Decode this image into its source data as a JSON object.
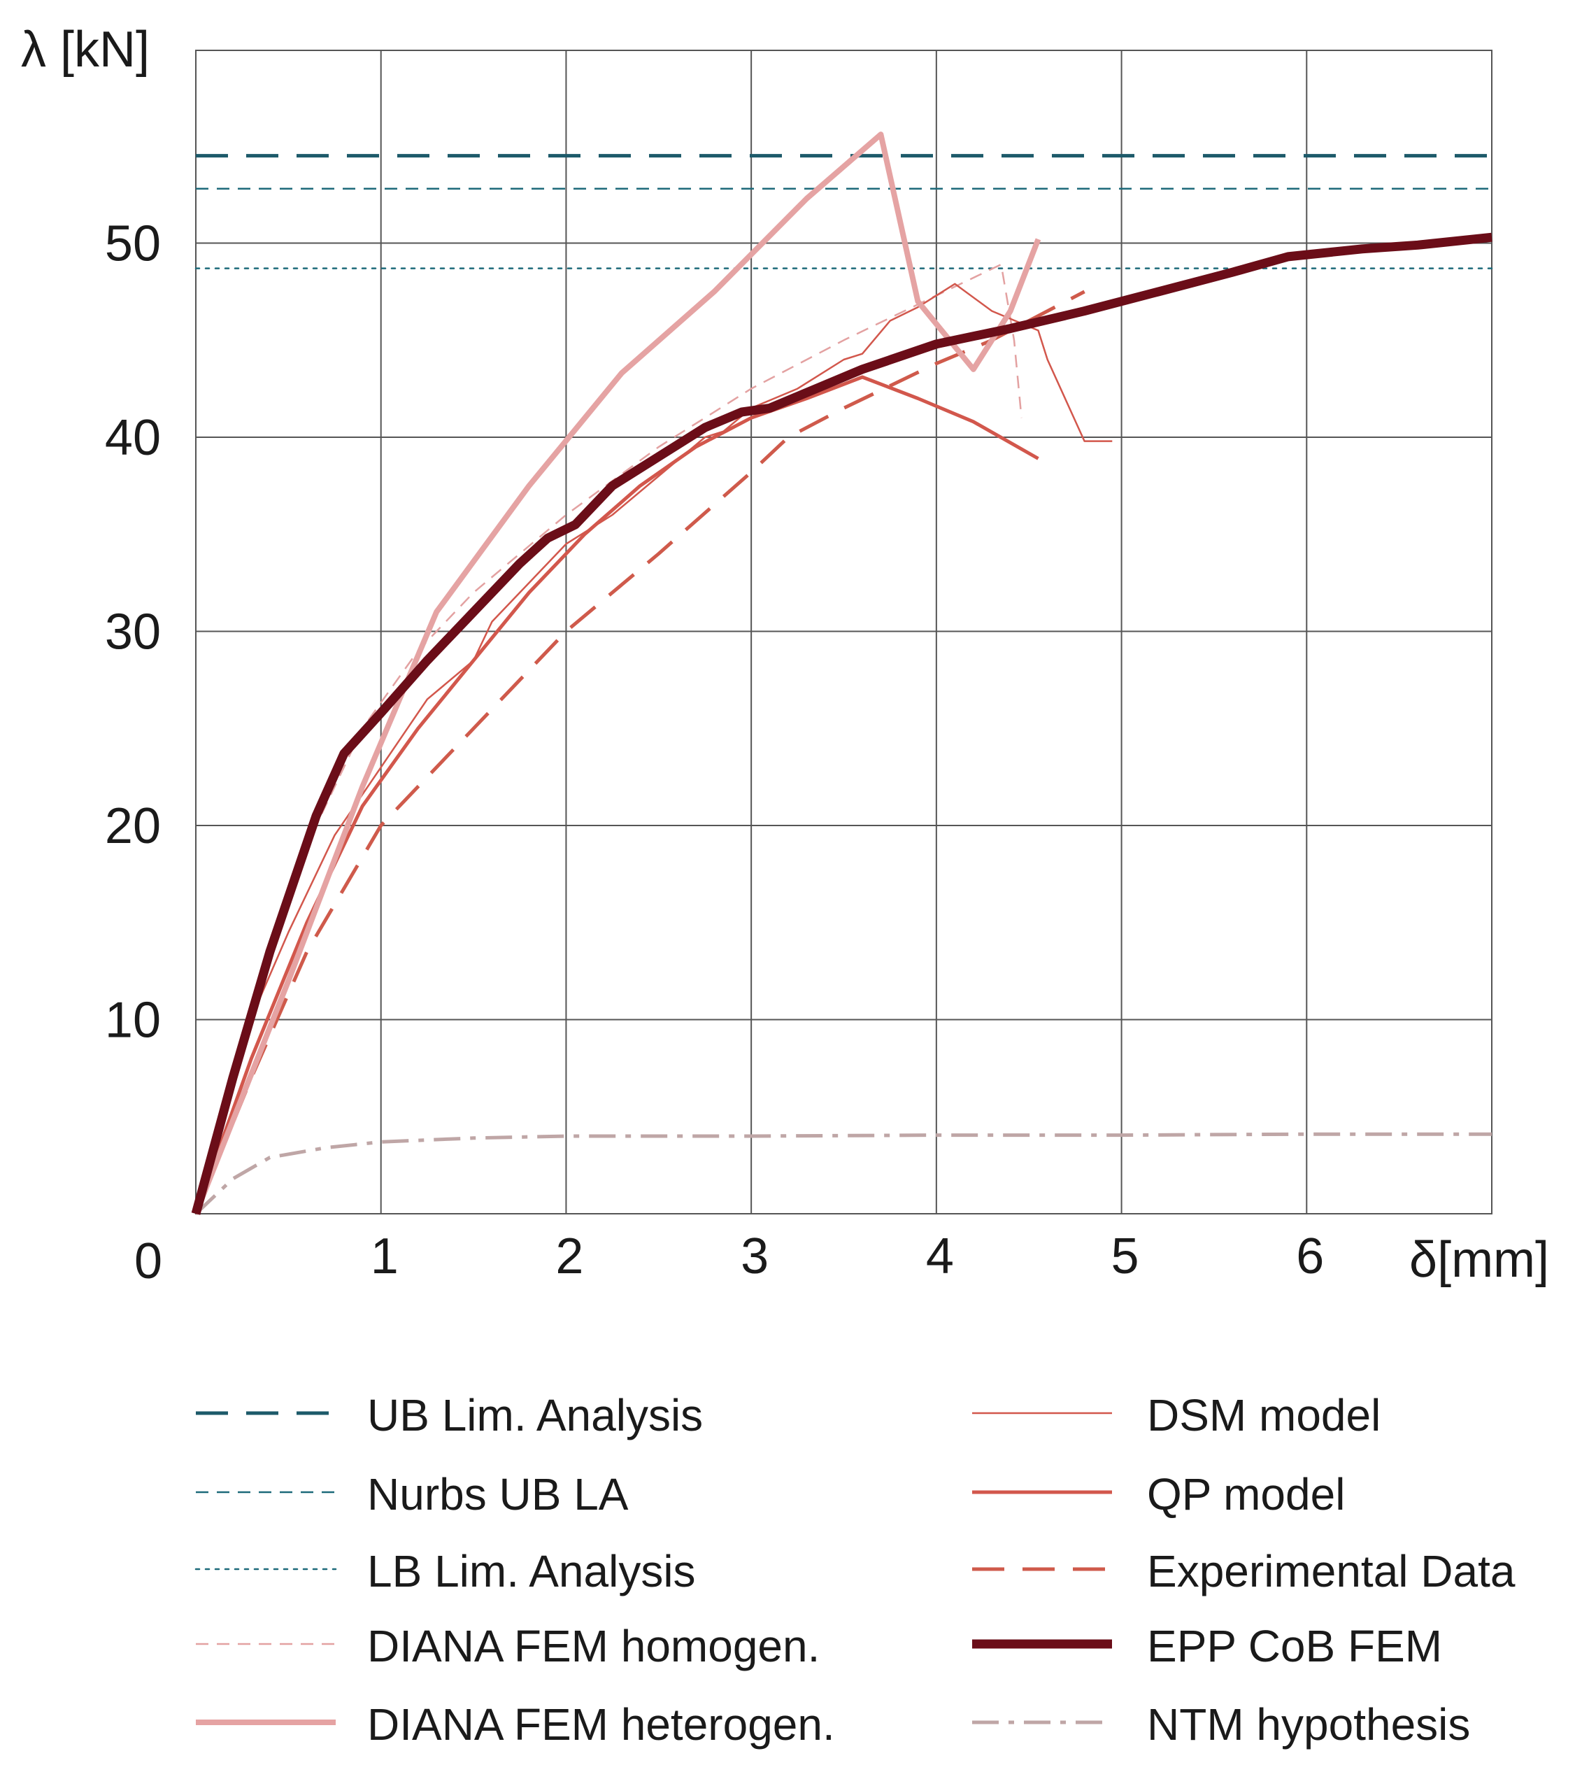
{
  "chart_data": {
    "type": "line",
    "title": "",
    "xlabel": "δ[mm]",
    "ylabel": "λ [kN]",
    "origin_label": "0",
    "xlim": [
      0,
      7
    ],
    "ylim": [
      0,
      60
    ],
    "xticks": [
      1,
      2,
      3,
      4,
      5,
      6
    ],
    "yticks": [
      10,
      20,
      30,
      40,
      50
    ],
    "grid": true,
    "legend_position": "bottom",
    "series": [
      {
        "name": "UB Lim. Analysis",
        "color": "#1d5a6a",
        "style": "long-dash",
        "weight": "medium",
        "x": [
          0,
          7
        ],
        "y": [
          54.5,
          54.5
        ]
      },
      {
        "name": "Nurbs UB LA",
        "color": "#1d6a7a",
        "style": "dash",
        "weight": "thin",
        "x": [
          0,
          7
        ],
        "y": [
          52.8,
          52.8
        ]
      },
      {
        "name": "LB Lim. Analysis",
        "color": "#1d6a7a",
        "style": "dot",
        "weight": "thin",
        "x": [
          0,
          7
        ],
        "y": [
          48.7,
          48.7
        ]
      },
      {
        "name": "DIANA FEM homogen.",
        "color": "#e3a1a1",
        "style": "dash",
        "weight": "thin",
        "x": [
          0,
          0.3,
          0.6,
          0.9,
          1.2,
          1.5,
          2.0,
          2.5,
          3.0,
          3.5,
          4.0,
          4.35,
          4.42,
          4.46
        ],
        "y": [
          0,
          10,
          19,
          25,
          29,
          32,
          36,
          39.5,
          42.5,
          45,
          47.3,
          48.9,
          45,
          41
        ]
      },
      {
        "name": "DIANA FEM heterogen.",
        "color": "#e5a3a3",
        "style": "solid",
        "weight": "thick",
        "x": [
          0,
          0.5,
          0.9,
          1.3,
          1.8,
          2.3,
          2.8,
          3.3,
          3.7,
          3.9,
          4.2,
          4.4,
          4.55
        ],
        "y": [
          0,
          12,
          22,
          31,
          37.5,
          43.3,
          47.5,
          52.3,
          55.6,
          47,
          43.5,
          46.5,
          50.2
        ]
      },
      {
        "name": "DSM model",
        "color": "#d2574c",
        "style": "solid",
        "weight": "thin",
        "x": [
          0,
          0.25,
          0.5,
          0.75,
          1.0,
          1.25,
          1.5,
          1.6,
          1.85,
          2.0,
          2.25,
          2.5,
          2.75,
          2.85,
          3.0,
          3.25,
          3.5,
          3.6,
          3.75,
          3.9,
          4.1,
          4.3,
          4.55,
          4.6,
          4.8,
          4.95
        ],
        "y": [
          0,
          9,
          14.5,
          19.5,
          23,
          26.5,
          28.5,
          30.5,
          33,
          34.5,
          36,
          38,
          40,
          40.3,
          41.5,
          42.5,
          44,
          44.3,
          46,
          46.7,
          47.9,
          46.5,
          45.5,
          44,
          39.8,
          39.8
        ]
      },
      {
        "name": "QP model",
        "color": "#d2574c",
        "style": "solid",
        "weight": "medium",
        "x": [
          0,
          0.3,
          0.6,
          0.9,
          1.2,
          1.5,
          1.8,
          2.1,
          2.4,
          2.7,
          3.0,
          3.3,
          3.6,
          3.9,
          4.2,
          4.55
        ],
        "y": [
          0,
          8,
          15,
          21,
          25,
          28.5,
          32,
          35,
          37.5,
          39.5,
          41,
          42,
          43.1,
          42,
          40.8,
          38.9
        ]
      },
      {
        "name": "Experimental Data",
        "color": "#cf5a4b",
        "style": "long-dash",
        "weight": "medium",
        "x": [
          0,
          0.3,
          0.6,
          1.0,
          1.5,
          2.0,
          2.5,
          3.0,
          3.2,
          3.5,
          4.0,
          4.3,
          4.8
        ],
        "y": [
          0,
          7,
          13.5,
          20,
          25,
          30,
          34,
          38.2,
          40,
          41.5,
          43.8,
          45,
          47.5
        ]
      },
      {
        "name": "EPP CoB FEM",
        "color": "#6b0d18",
        "style": "solid",
        "weight": "xthick",
        "x": [
          0,
          0.2,
          0.4,
          0.65,
          0.8,
          1.0,
          1.25,
          1.5,
          1.75,
          1.9,
          2.05,
          2.25,
          2.5,
          2.75,
          2.95,
          3.1,
          3.35,
          3.6,
          4.0,
          4.4,
          4.8,
          5.2,
          5.6,
          5.9,
          6.3,
          6.6,
          7.0
        ],
        "y": [
          0,
          7,
          13.5,
          20.5,
          23.7,
          25.8,
          28.5,
          31,
          33.5,
          34.8,
          35.5,
          37.5,
          39,
          40.5,
          41.3,
          41.5,
          42.5,
          43.5,
          44.8,
          45.6,
          46.5,
          47.5,
          48.5,
          49.3,
          49.7,
          49.9,
          50.3
        ]
      },
      {
        "name": "NTM hypothesis",
        "color": "#bfa6a6",
        "style": "dash-dot",
        "weight": "medium",
        "x": [
          0,
          0.2,
          0.4,
          0.7,
          1.0,
          1.5,
          2.0,
          3.0,
          4.0,
          5.0,
          6.0,
          7.0
        ],
        "y": [
          0,
          1.8,
          2.9,
          3.4,
          3.7,
          3.9,
          4.0,
          4.0,
          4.05,
          4.05,
          4.1,
          4.1
        ]
      }
    ]
  }
}
